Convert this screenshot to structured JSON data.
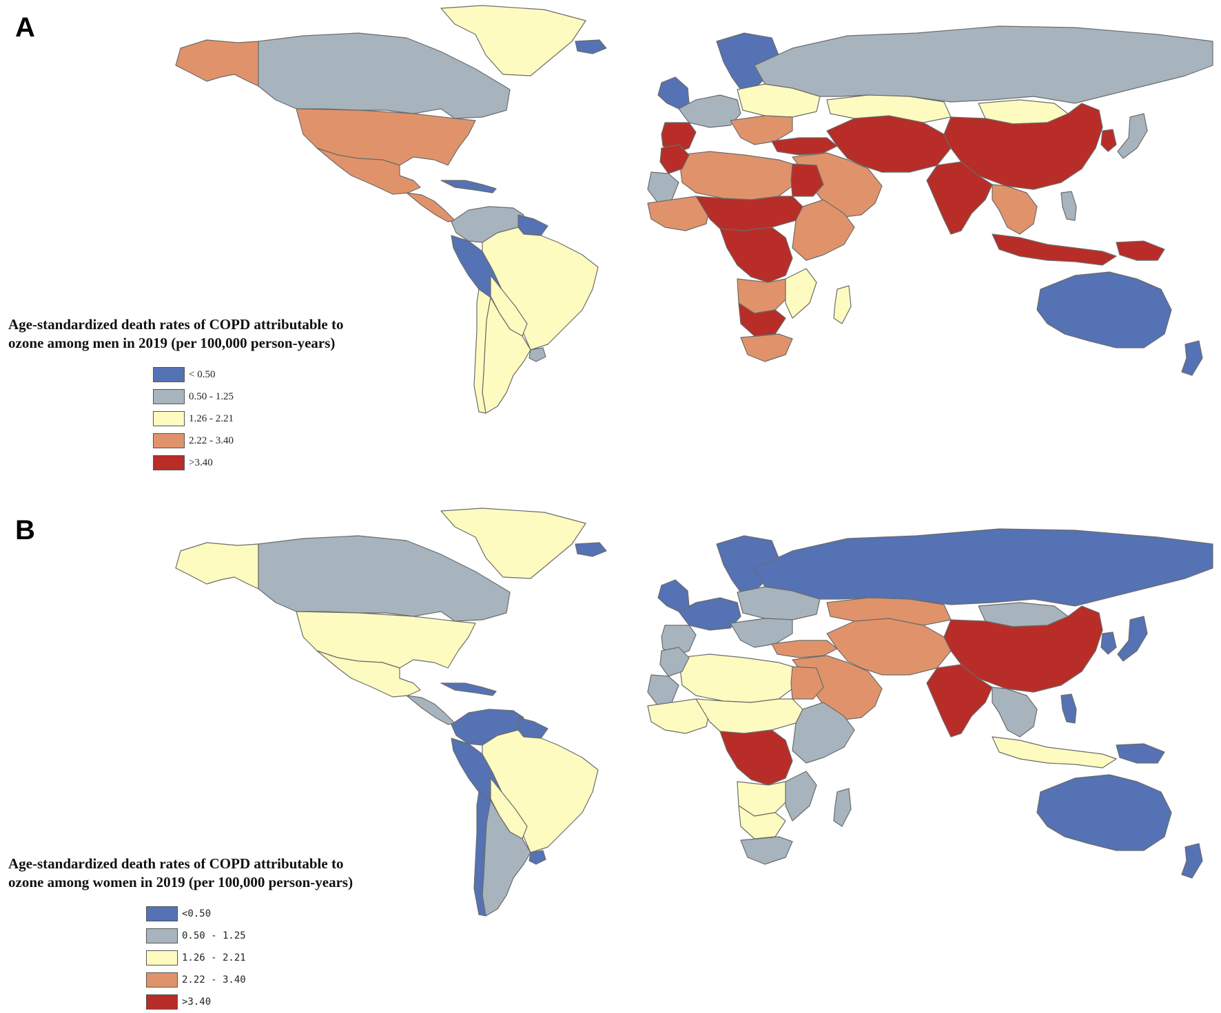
{
  "colors": {
    "c1": "#5572b4",
    "c2": "#a7b4be",
    "c3": "#fdfbc0",
    "c4": "#e0936a",
    "c5": "#b82d28",
    "border": "#6b6b6b",
    "unassigned": "#ffffff"
  },
  "panels": [
    {
      "label": "A",
      "legend_title_line1": "Age-standardized death rates of COPD attributable to",
      "legend_title_line2": "ozone among men in 2019 (per 100,000 person-years)",
      "legend": [
        {
          "label": "< 0.50",
          "color_key": "c1"
        },
        {
          "label": "0.50 - 1.25",
          "color_key": "c2"
        },
        {
          "label": "1.26 - 2.21",
          "color_key": "c3"
        },
        {
          "label": "2.22 - 3.40",
          "color_key": "c4"
        },
        {
          "label": ">3.40",
          "color_key": "c5"
        }
      ],
      "region_classes": {
        "greenland": "c3",
        "alaska": "c4",
        "canada": "c2",
        "usa": "c4",
        "mexico": "c4",
        "central_america": "c4",
        "caribbean": "c1",
        "colombia_venezuela": "c2",
        "guianas": "c1",
        "peru_ecuador": "c1",
        "brazil": "c3",
        "bolivia_paraguay": "c3",
        "argentina": "c3",
        "uruguay": "c2",
        "chile": "c3",
        "iceland": "c1",
        "uk_ireland": "c1",
        "scandinavia": "c1",
        "western_europe": "c2",
        "iberia": "c5",
        "eastern_europe": "c3",
        "balkans": "c4",
        "russia": "c2",
        "turkey": "c5",
        "middle_east": "c4",
        "iran_central_asia": "c5",
        "kazakhstan": "c3",
        "mongolia": "c3",
        "china": "c5",
        "korea": "c5",
        "japan": "c2",
        "india": "c5",
        "southeast_asia": "c4",
        "indonesia": "c5",
        "philippines": "c2",
        "papua": "c5",
        "australia": "c1",
        "new_zealand": "c1",
        "north_africa": "c4",
        "morocco": "c5",
        "western_sahara": "c2",
        "egypt": "c5",
        "west_africa_coast": "c4",
        "sahel": "c5",
        "central_africa": "c5",
        "east_africa": "c4",
        "southern_africa_a": "c4",
        "southern_africa_b": "c5",
        "south_africa": "c4",
        "madagascar": "c3",
        "mozambique": "c3"
      }
    },
    {
      "label": "B",
      "legend_title_line1": "Age-standardized death rates of COPD attributable to",
      "legend_title_line2": "ozone among women in 2019 (per 100,000 person-years)",
      "legend": [
        {
          "label": "<0.50",
          "color_key": "c1"
        },
        {
          "label": "0.50 - 1.25",
          "color_key": "c2"
        },
        {
          "label": "1.26 - 2.21",
          "color_key": "c3"
        },
        {
          "label": "2.22 - 3.40",
          "color_key": "c4"
        },
        {
          "label": ">3.40",
          "color_key": "c5"
        }
      ],
      "region_classes": {
        "greenland": "c3",
        "alaska": "c3",
        "canada": "c2",
        "usa": "c3",
        "mexico": "c3",
        "central_america": "c2",
        "caribbean": "c1",
        "colombia_venezuela": "c1",
        "guianas": "c1",
        "peru_ecuador": "c1",
        "brazil": "c3",
        "bolivia_paraguay": "c3",
        "argentina": "c2",
        "uruguay": "c1",
        "chile": "c1",
        "iceland": "c1",
        "uk_ireland": "c1",
        "scandinavia": "c1",
        "western_europe": "c1",
        "iberia": "c2",
        "eastern_europe": "c2",
        "balkans": "c2",
        "russia": "c1",
        "turkey": "c4",
        "middle_east": "c4",
        "iran_central_asia": "c4",
        "kazakhstan": "c4",
        "mongolia": "c2",
        "china": "c5",
        "korea": "c1",
        "japan": "c1",
        "india": "c5",
        "southeast_asia": "c2",
        "indonesia": "c3",
        "philippines": "c1",
        "papua": "c1",
        "australia": "c1",
        "new_zealand": "c1",
        "north_africa": "c3",
        "morocco": "c2",
        "western_sahara": "c2",
        "egypt": "c4",
        "west_africa_coast": "c3",
        "sahel": "c3",
        "central_africa": "c5",
        "east_africa": "c2",
        "southern_africa_a": "c3",
        "southern_africa_b": "c3",
        "south_africa": "c2",
        "madagascar": "c2",
        "mozambique": "c2"
      }
    }
  ]
}
